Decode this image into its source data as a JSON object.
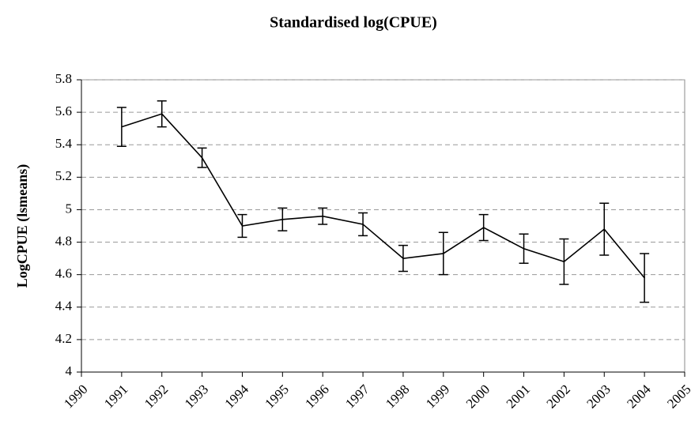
{
  "chart_data": {
    "type": "line",
    "title": "Standardised log(CPUE)",
    "ylabel": "LogCPUE (lsmeans)",
    "x": [
      1991,
      1992,
      1993,
      1994,
      1995,
      1996,
      1997,
      1998,
      1999,
      2000,
      2001,
      2002,
      2003,
      2004
    ],
    "values": [
      5.51,
      5.59,
      5.32,
      4.9,
      4.94,
      4.96,
      4.91,
      4.7,
      4.73,
      4.89,
      4.76,
      4.68,
      4.88,
      4.58
    ],
    "errors": [
      0.12,
      0.08,
      0.06,
      0.07,
      0.07,
      0.05,
      0.07,
      0.08,
      0.13,
      0.08,
      0.09,
      0.14,
      0.16,
      0.15
    ],
    "color": "#000000",
    "xlim": [
      1990,
      2005
    ],
    "xticks": [
      1990,
      1991,
      1992,
      1993,
      1994,
      1995,
      1996,
      1997,
      1998,
      1999,
      2000,
      2001,
      2002,
      2003,
      2004,
      2005
    ],
    "ylim": [
      4,
      5.8
    ],
    "yticks": [
      4,
      4.2,
      4.4,
      4.6,
      4.8,
      5,
      5.2,
      5.4,
      5.6,
      5.8
    ],
    "grid": true
  }
}
